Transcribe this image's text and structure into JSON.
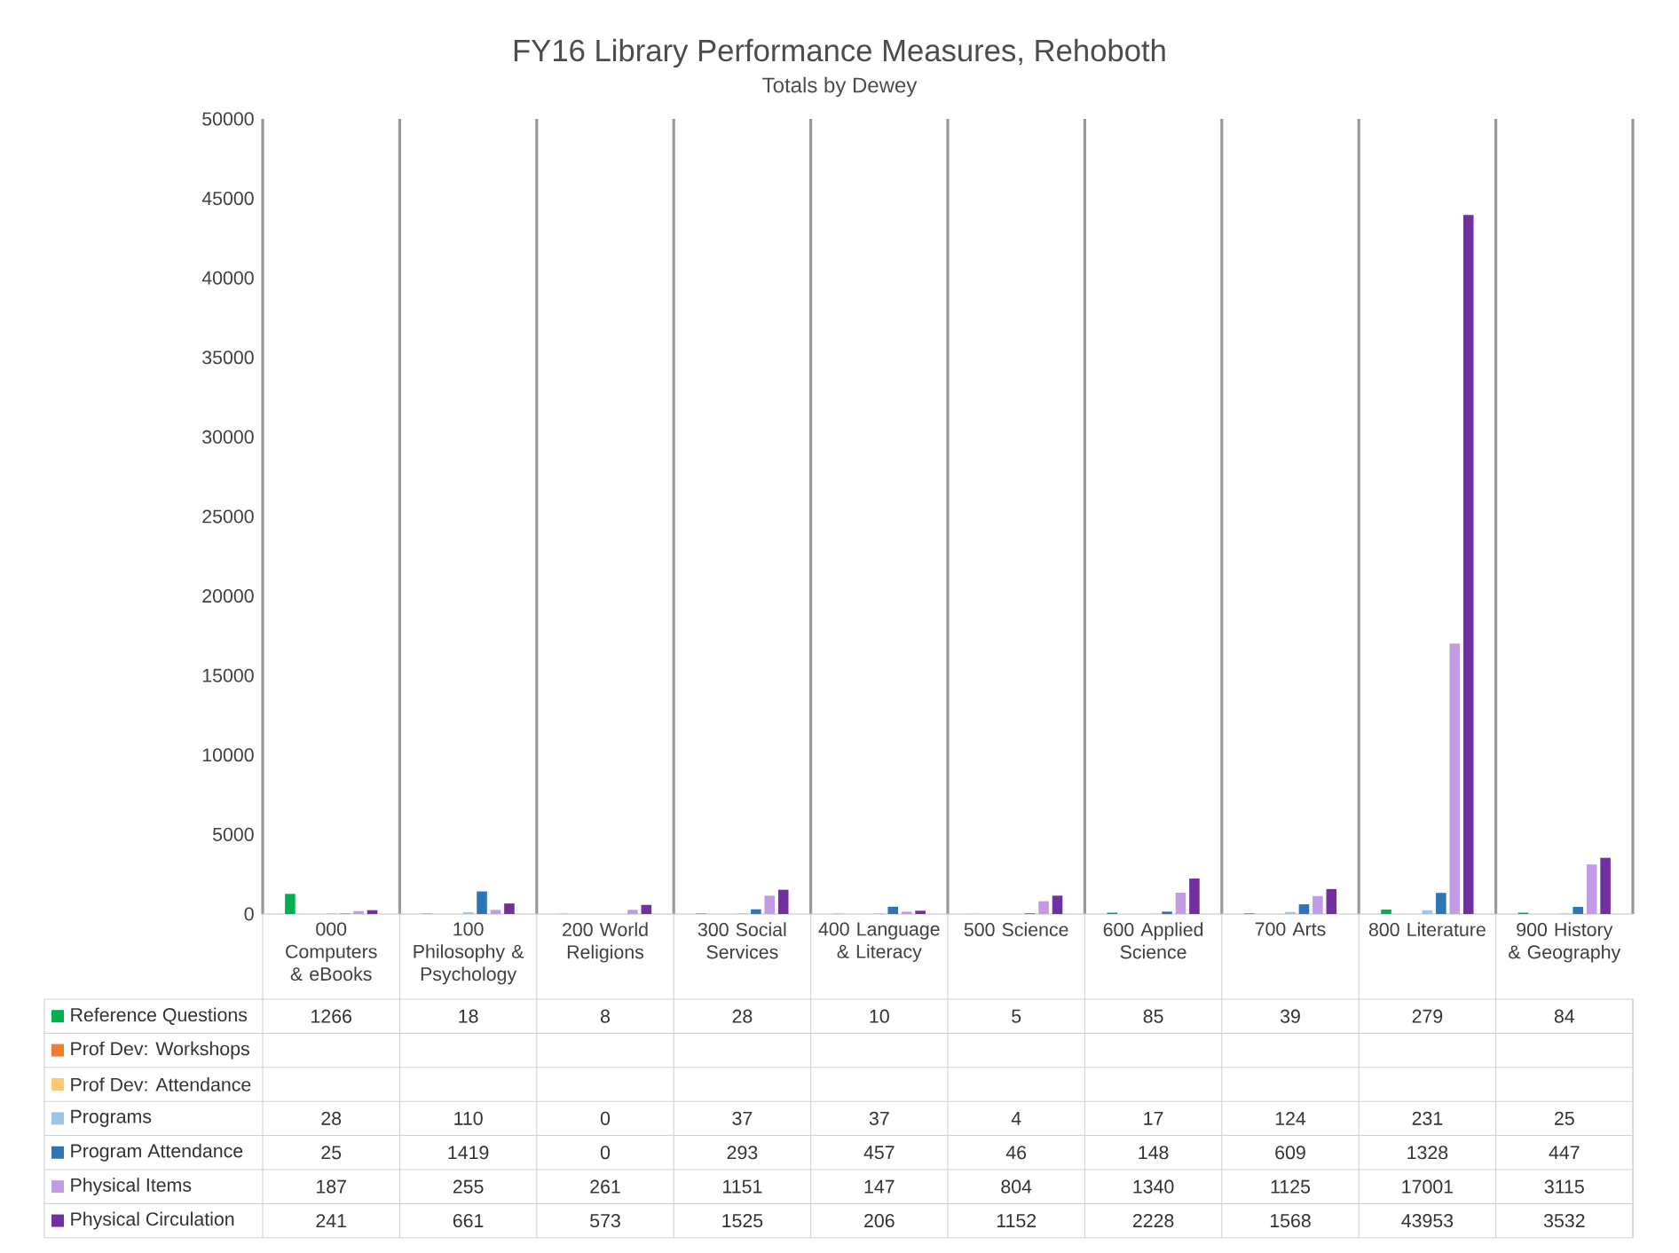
{
  "chart_data": {
    "type": "bar",
    "title": "FY16 Library Performance Measures, Rehoboth",
    "subtitle": "Totals by Dewey",
    "categories": [
      "000 Computers & eBooks",
      "100 Philosophy & Psychology",
      "200 World Religions",
      "300 Social Services",
      "400 Language & Literacy",
      "500 Science",
      "600 Applied Science",
      "700 Arts",
      "800 Literature",
      "900 History & Geography"
    ],
    "series": [
      {
        "name": "Reference Questions",
        "color": "#00b050",
        "values": [
          1266,
          18,
          8,
          28,
          10,
          5,
          85,
          39,
          279,
          84
        ]
      },
      {
        "name": "Prof Dev: Workshops",
        "color": "#ed7d31",
        "values": [
          null,
          null,
          null,
          null,
          null,
          null,
          null,
          null,
          null,
          null
        ]
      },
      {
        "name": "Prof Dev: Attendance",
        "color": "#ffc773",
        "values": [
          null,
          null,
          null,
          null,
          null,
          null,
          null,
          null,
          null,
          null
        ]
      },
      {
        "name": "Programs",
        "color": "#9dc3e6",
        "values": [
          28,
          110,
          0,
          37,
          37,
          4,
          17,
          124,
          231,
          25
        ]
      },
      {
        "name": "Program Attendance",
        "color": "#2e75b6",
        "values": [
          25,
          1419,
          0,
          293,
          457,
          46,
          148,
          609,
          1328,
          447
        ]
      },
      {
        "name": "Physical Items",
        "color": "#c39be5",
        "values": [
          187,
          255,
          261,
          1151,
          147,
          804,
          1340,
          1125,
          17001,
          3115
        ]
      },
      {
        "name": "Physical Circulation",
        "color": "#7030a0",
        "values": [
          241,
          661,
          573,
          1525,
          206,
          1152,
          2228,
          1568,
          43953,
          3532
        ]
      }
    ],
    "ylim": [
      0,
      50000
    ],
    "yticks": [
      0,
      5000,
      10000,
      15000,
      20000,
      25000,
      30000,
      35000,
      40000,
      45000,
      50000
    ],
    "grid": "x",
    "legend": "bottom",
    "data_labels": true
  }
}
